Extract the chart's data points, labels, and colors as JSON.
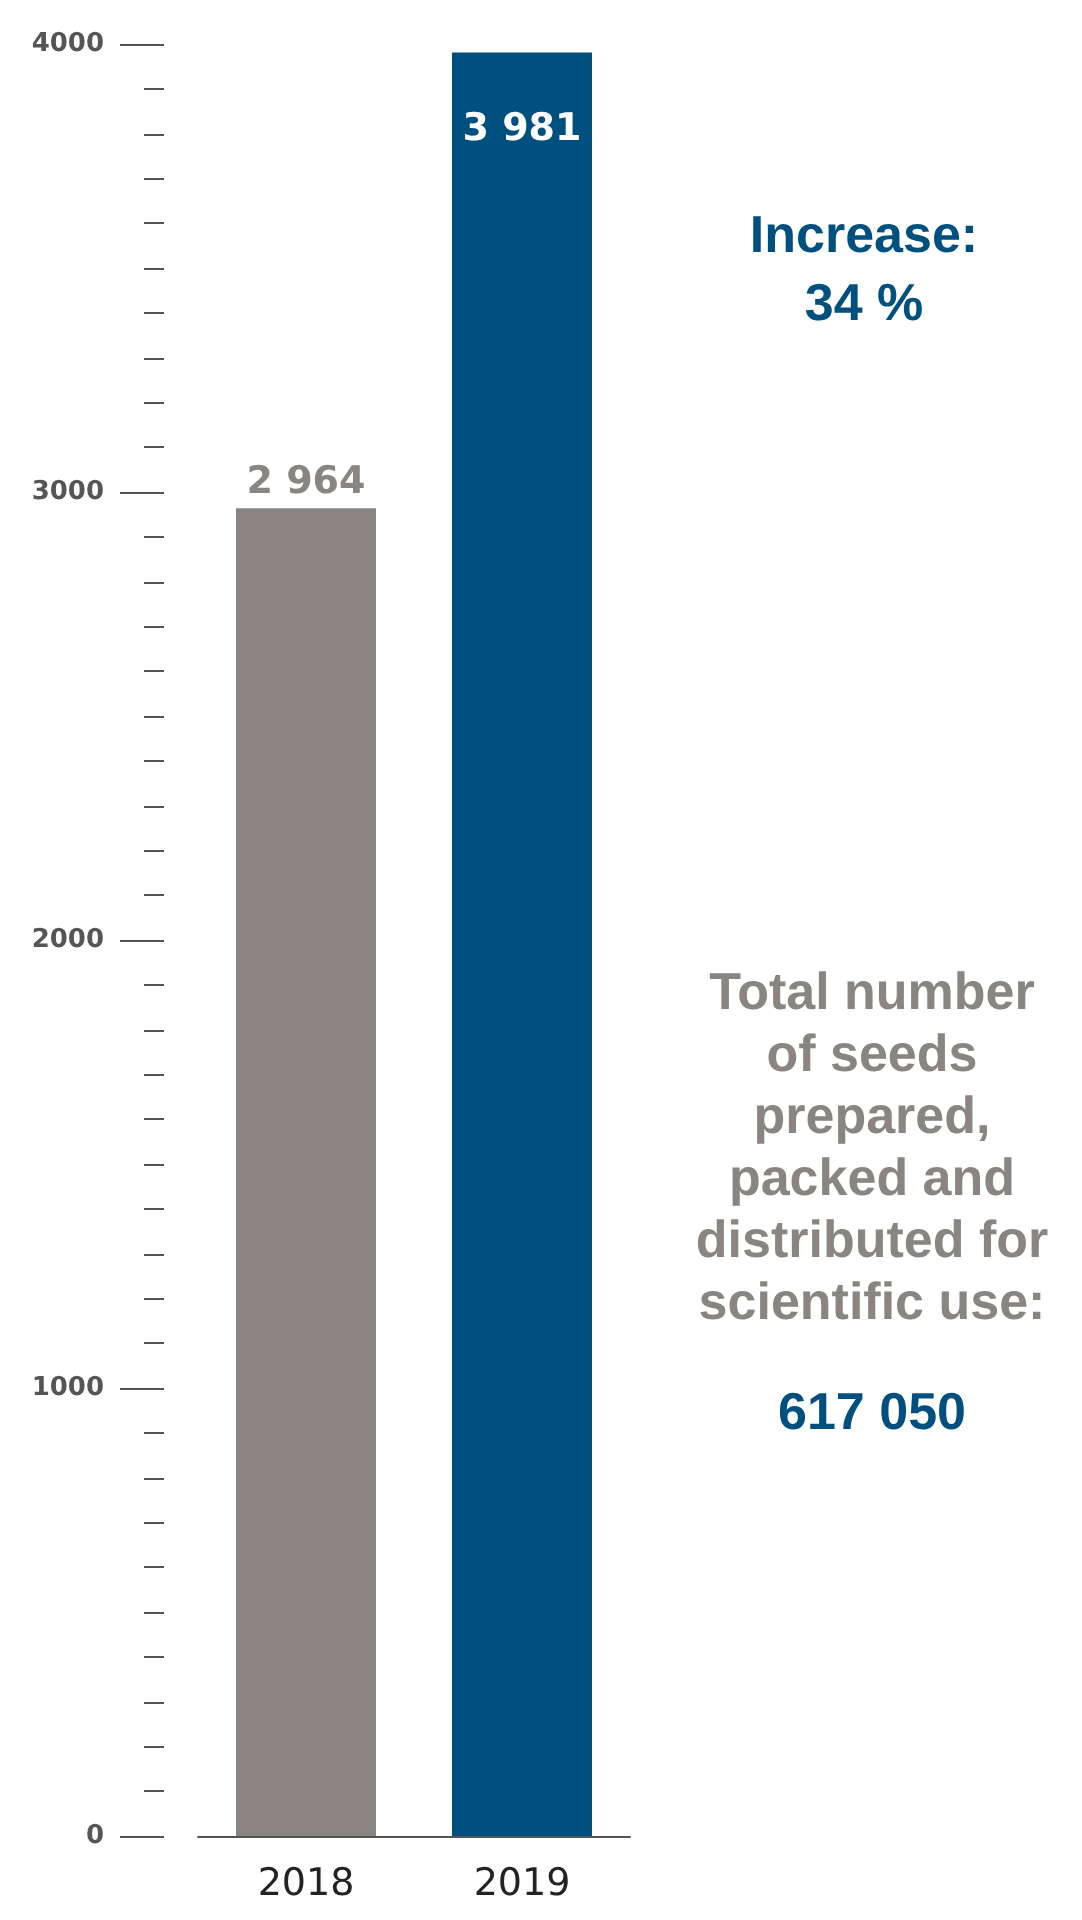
{
  "chart_data": {
    "type": "bar",
    "categories": [
      "2018",
      "2019"
    ],
    "values": [
      2964,
      3981
    ],
    "colors": [
      "#8a8580",
      "#00507f"
    ],
    "value_labels": [
      "2 964",
      "3 981"
    ],
    "ylim": [
      0,
      4000
    ],
    "yticks": [
      0,
      1000,
      2000,
      3000,
      4000
    ],
    "grid": false,
    "annotations": [
      "Increase:\n34 %",
      "Total number\nof seeds\nprepared,\npacked and\ndistributed for\nscientific use:",
      "617 050"
    ]
  }
}
